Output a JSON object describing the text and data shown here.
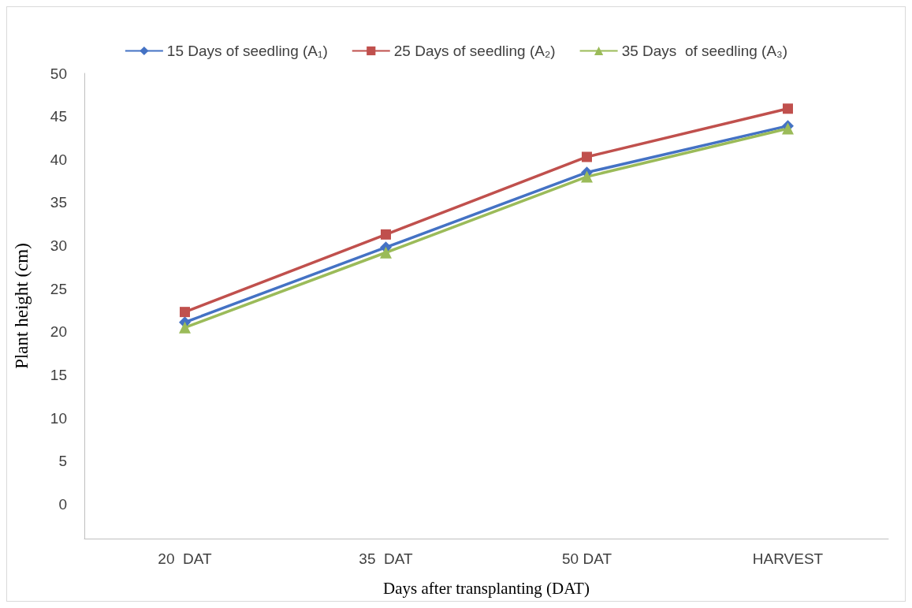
{
  "chart_data": {
    "type": "line",
    "xlabel": "Days after transplanting (DAT)",
    "ylabel": "Plant height (cm)",
    "categories": [
      "20  DAT",
      "35  DAT",
      "50 DAT",
      "HARVEST"
    ],
    "series": [
      {
        "name": "15 Days of seedling (A₁)",
        "color": "#4472c4",
        "marker": "diamond",
        "values": [
          21.1,
          29.8,
          38.5,
          43.9
        ]
      },
      {
        "name": "25 Days of seedling (A₂)",
        "color": "#c0504d",
        "marker": "square",
        "values": [
          22.3,
          31.3,
          40.3,
          45.9
        ]
      },
      {
        "name": "35 Days  of seedling (A₃)",
        "color": "#9bbb59",
        "marker": "triangle",
        "values": [
          20.5,
          29.2,
          38.0,
          43.6
        ]
      }
    ],
    "ylim": [
      -4,
      50
    ],
    "yticks": [
      0,
      5,
      10,
      15,
      20,
      25,
      30,
      35,
      40,
      45,
      50
    ],
    "grid": false,
    "legend": "top",
    "line_style": "solid"
  }
}
